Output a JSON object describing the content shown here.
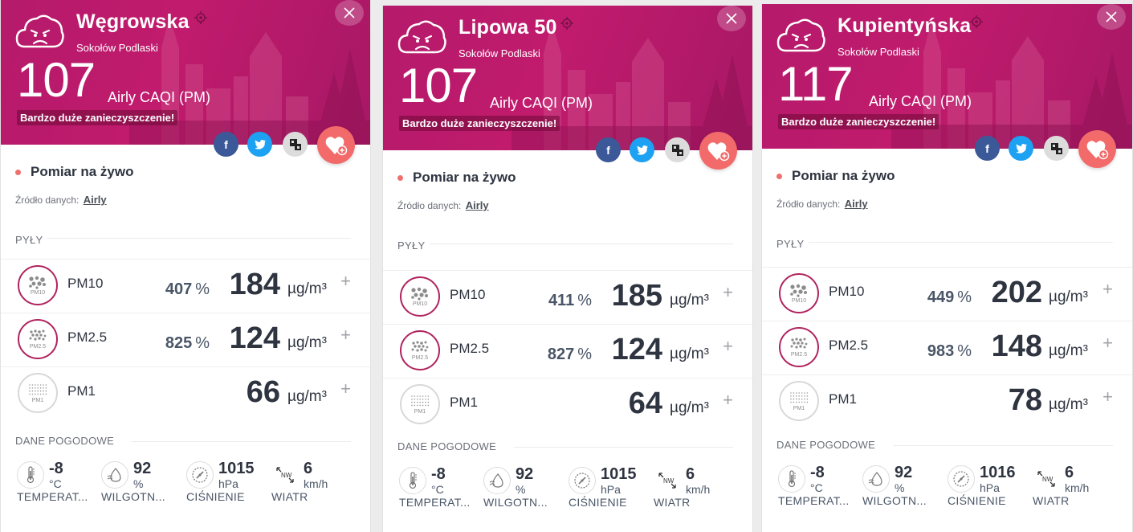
{
  "colors": {
    "header": "#c11b6d",
    "accent": "#f26a6a",
    "ring": "#b0235e",
    "facebook": "#3b5998",
    "twitter": "#1da1f2"
  },
  "panels": [
    {
      "name": "Węgrowska",
      "city": "Sokołów Podlaski",
      "caqi": "107",
      "caqi_label": "Airly CAQI (PM)",
      "status": "Bardzo duże zanieczyszczenie!",
      "live_label": "Pomiar na żywo",
      "source_label": "Źródło danych:",
      "source_link": "Airly",
      "dust_title": "PYŁY",
      "pm": [
        {
          "name": "PM10",
          "icon_label": "PM10",
          "percent": "407",
          "percent_unit": "%",
          "value": "184",
          "unit": "µg/m³"
        },
        {
          "name": "PM2.5",
          "icon_label": "PM2.5",
          "percent": "825",
          "percent_unit": "%",
          "value": "124",
          "unit": "µg/m³"
        },
        {
          "name": "PM1",
          "icon_label": "PM1",
          "percent": "",
          "percent_unit": "",
          "value": "66",
          "unit": "µg/m³"
        }
      ],
      "weather_title": "DANE POGODOWE",
      "weather": [
        {
          "icon": "thermometer-icon",
          "value": "-8",
          "unit": "°C",
          "label": "TEMPERAT..."
        },
        {
          "icon": "humidity-icon",
          "value": "92",
          "unit": "%",
          "label": "WILGOTN..."
        },
        {
          "icon": "pressure-icon",
          "value": "1015",
          "unit": "hPa",
          "label": "CIŚNIENIE"
        },
        {
          "icon": "wind-icon",
          "value": "6",
          "unit": "km/h",
          "label": "WIATR",
          "direction": "NW"
        }
      ]
    },
    {
      "name": "Lipowa 50",
      "city": "Sokołów Podlaski",
      "caqi": "107",
      "caqi_label": "Airly CAQI (PM)",
      "status": "Bardzo duże zanieczyszczenie!",
      "live_label": "Pomiar na żywo",
      "source_label": "Źródło danych:",
      "source_link": "Airly",
      "dust_title": "PYŁY",
      "pm": [
        {
          "name": "PM10",
          "icon_label": "PM10",
          "percent": "411",
          "percent_unit": "%",
          "value": "185",
          "unit": "µg/m³"
        },
        {
          "name": "PM2.5",
          "icon_label": "PM2.5",
          "percent": "827",
          "percent_unit": "%",
          "value": "124",
          "unit": "µg/m³"
        },
        {
          "name": "PM1",
          "icon_label": "PM1",
          "percent": "",
          "percent_unit": "",
          "value": "64",
          "unit": "µg/m³"
        }
      ],
      "weather_title": "DANE POGODOWE",
      "weather": [
        {
          "icon": "thermometer-icon",
          "value": "-8",
          "unit": "°C",
          "label": "TEMPERAT..."
        },
        {
          "icon": "humidity-icon",
          "value": "92",
          "unit": "%",
          "label": "WILGOTN..."
        },
        {
          "icon": "pressure-icon",
          "value": "1015",
          "unit": "hPa",
          "label": "CIŚNIENIE"
        },
        {
          "icon": "wind-icon",
          "value": "6",
          "unit": "km/h",
          "label": "WIATR",
          "direction": "NW"
        }
      ]
    },
    {
      "name": "Kupientyńska",
      "city": "Sokołów Podlaski",
      "caqi": "117",
      "caqi_label": "Airly CAQI (PM)",
      "status": "Bardzo duże zanieczyszczenie!",
      "live_label": "Pomiar na żywo",
      "source_label": "Źródło danych:",
      "source_link": "Airly",
      "dust_title": "PYŁY",
      "pm": [
        {
          "name": "PM10",
          "icon_label": "PM10",
          "percent": "449",
          "percent_unit": "%",
          "value": "202",
          "unit": "µg/m³"
        },
        {
          "name": "PM2.5",
          "icon_label": "PM2.5",
          "percent": "983",
          "percent_unit": "%",
          "value": "148",
          "unit": "µg/m³"
        },
        {
          "name": "PM1",
          "icon_label": "PM1",
          "percent": "",
          "percent_unit": "",
          "value": "78",
          "unit": "µg/m³"
        }
      ],
      "weather_title": "DANE POGODOWE",
      "weather": [
        {
          "icon": "thermometer-icon",
          "value": "-8",
          "unit": "°C",
          "label": "TEMPERAT..."
        },
        {
          "icon": "humidity-icon",
          "value": "92",
          "unit": "%",
          "label": "WILGOTN..."
        },
        {
          "icon": "pressure-icon",
          "value": "1016",
          "unit": "hPa",
          "label": "CIŚNIENIE"
        },
        {
          "icon": "wind-icon",
          "value": "6",
          "unit": "km/h",
          "label": "WIATR",
          "direction": "NW"
        }
      ]
    }
  ]
}
